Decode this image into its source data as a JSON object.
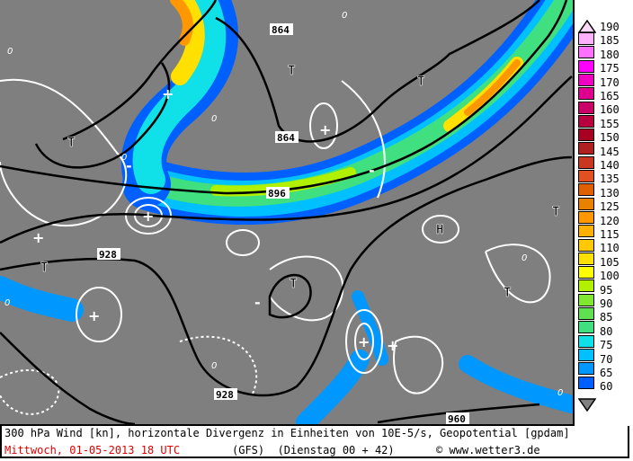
{
  "map": {
    "geopotential_labels": [
      "864",
      "864",
      "896",
      "928",
      "928",
      "960"
    ],
    "low_marker": "T",
    "high_marker": "H",
    "divergence_positive": "+",
    "divergence_negative": "-",
    "zero_label": "0"
  },
  "legend": {
    "unit": "kn",
    "items": [
      {
        "value": "190",
        "color": "#ffd8f8"
      },
      {
        "value": "185",
        "color": "#ffb0ff"
      },
      {
        "value": "180",
        "color": "#ff70ff"
      },
      {
        "value": "175",
        "color": "#ff00ff"
      },
      {
        "value": "170",
        "color": "#f000c0"
      },
      {
        "value": "165",
        "color": "#e00090"
      },
      {
        "value": "160",
        "color": "#c80068"
      },
      {
        "value": "155",
        "color": "#b80040"
      },
      {
        "value": "150",
        "color": "#a80020"
      },
      {
        "value": "145",
        "color": "#b02020"
      },
      {
        "value": "140",
        "color": "#c83820"
      },
      {
        "value": "135",
        "color": "#e05020"
      },
      {
        "value": "130",
        "color": "#e06000"
      },
      {
        "value": "125",
        "color": "#e88000"
      },
      {
        "value": "120",
        "color": "#ff9800"
      },
      {
        "value": "115",
        "color": "#ffb000"
      },
      {
        "value": "110",
        "color": "#ffc800"
      },
      {
        "value": "105",
        "color": "#ffe000"
      },
      {
        "value": "100",
        "color": "#ffff00"
      },
      {
        "value": "95",
        "color": "#b0f000"
      },
      {
        "value": "90",
        "color": "#80e830"
      },
      {
        "value": "85",
        "color": "#60e050"
      },
      {
        "value": "80",
        "color": "#40e080"
      },
      {
        "value": "75",
        "color": "#10e0e8"
      },
      {
        "value": "70",
        "color": "#00c0ff"
      },
      {
        "value": "65",
        "color": "#0098ff"
      },
      {
        "value": "60",
        "color": "#0060ff"
      }
    ]
  },
  "caption": {
    "title": "300 hPa Wind [kn], horizontale Divergenz in Einheiten von 10E-5/s, Geopotential [gpdam]",
    "valid_time": "Mittwoch, 01-05-2013  18 UTC",
    "model_run": "(GFS)  (Dienstag 00 + 42)",
    "copyright": "© www.wetter3.de"
  },
  "colors": {
    "background": "#7f7f7f",
    "valid_time": "#e00000"
  }
}
